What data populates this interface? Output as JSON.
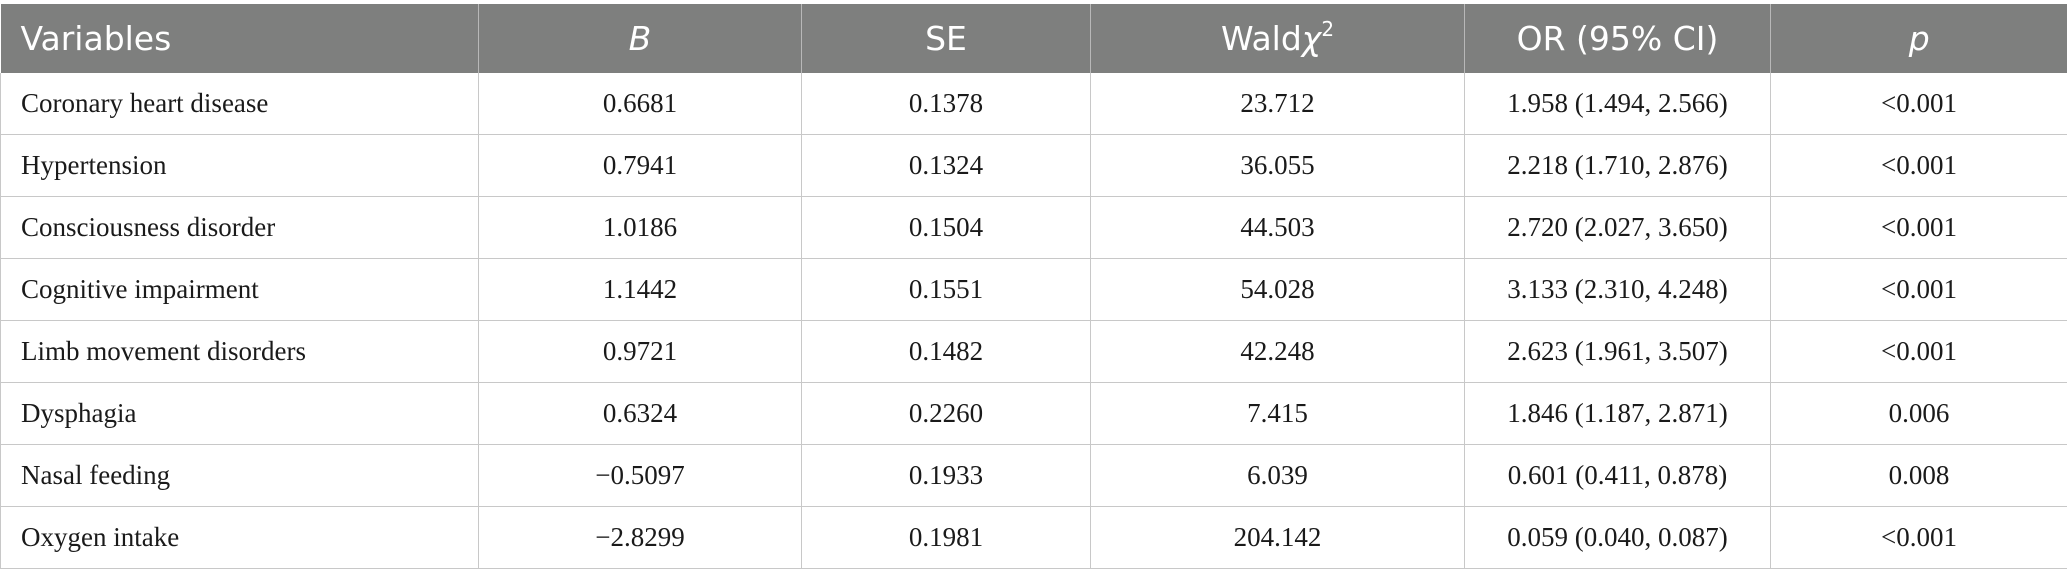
{
  "table": {
    "headers": [
      {
        "text": "Variables",
        "italic": false
      },
      {
        "text": "B",
        "italic": true
      },
      {
        "text": "SE",
        "italic": false
      },
      {
        "text": "Wald",
        "italic": false,
        "chi": "χ",
        "sup": "2"
      },
      {
        "text": "OR (95% CI)",
        "italic": false
      },
      {
        "text": "p",
        "italic": true
      }
    ],
    "rows": [
      [
        "Coronary heart disease",
        "0.6681",
        "0.1378",
        "23.712",
        "1.958 (1.494, 2.566)",
        "<0.001"
      ],
      [
        "Hypertension",
        "0.7941",
        "0.1324",
        "36.055",
        "2.218 (1.710, 2.876)",
        "<0.001"
      ],
      [
        "Consciousness disorder",
        "1.0186",
        "0.1504",
        "44.503",
        "2.720 (2.027, 3.650)",
        "<0.001"
      ],
      [
        "Cognitive impairment",
        "1.1442",
        "0.1551",
        "54.028",
        "3.133 (2.310, 4.248)",
        "<0.001"
      ],
      [
        "Limb movement disorders",
        "0.9721",
        "0.1482",
        "42.248",
        "2.623 (1.961, 3.507)",
        "<0.001"
      ],
      [
        "Dysphagia",
        "0.6324",
        "0.2260",
        "7.415",
        "1.846 (1.187, 2.871)",
        "0.006"
      ],
      [
        "Nasal feeding",
        "−0.5097",
        "0.1933",
        "6.039",
        "0.601 (0.411, 0.878)",
        "0.008"
      ],
      [
        "Oxygen intake",
        "−2.8299",
        "0.1981",
        "204.142",
        "0.059 (0.040, 0.087)",
        "<0.001"
      ]
    ]
  },
  "colors": {
    "header_bg": "#7e7f7e",
    "header_text": "#ffffff",
    "grid_line": "#c8c8c8"
  }
}
